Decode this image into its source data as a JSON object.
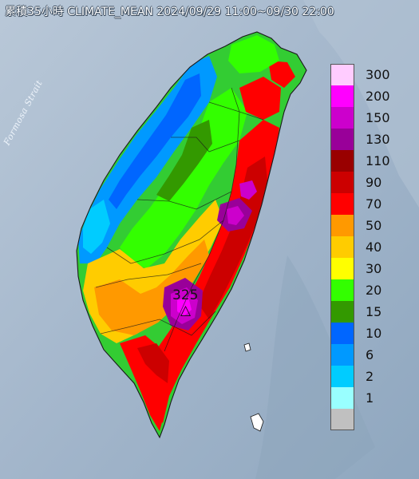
{
  "title": "累積35小時 CLIMATE_MEAN 2024/09/29 11:00~09/30 22:00",
  "strait_label": "Formosa Strait",
  "max_annotation": {
    "value": "325",
    "marker": "△"
  },
  "legend": {
    "items": [
      {
        "label": "300",
        "color": "#ffccff"
      },
      {
        "label": "200",
        "color": "#ff00ff"
      },
      {
        "label": "150",
        "color": "#cc00cc"
      },
      {
        "label": "130",
        "color": "#990099"
      },
      {
        "label": "110",
        "color": "#990000"
      },
      {
        "label": "90",
        "color": "#cc0000"
      },
      {
        "label": "70",
        "color": "#ff0000"
      },
      {
        "label": "50",
        "color": "#ff9900"
      },
      {
        "label": "40",
        "color": "#ffcc00"
      },
      {
        "label": "30",
        "color": "#ffff00"
      },
      {
        "label": "20",
        "color": "#33ff00"
      },
      {
        "label": "15",
        "color": "#339900"
      },
      {
        "label": "10",
        "color": "#0066ff"
      },
      {
        "label": "6",
        "color": "#0099ff"
      },
      {
        "label": "2",
        "color": "#00ccff"
      },
      {
        "label": "1",
        "color": "#99ffff"
      },
      {
        "label": "",
        "color": "#c0c0c0"
      }
    ]
  },
  "colors": {
    "sea": "#9fb4c9",
    "land_low": "#0099ff",
    "land_high": "#cc0000"
  }
}
